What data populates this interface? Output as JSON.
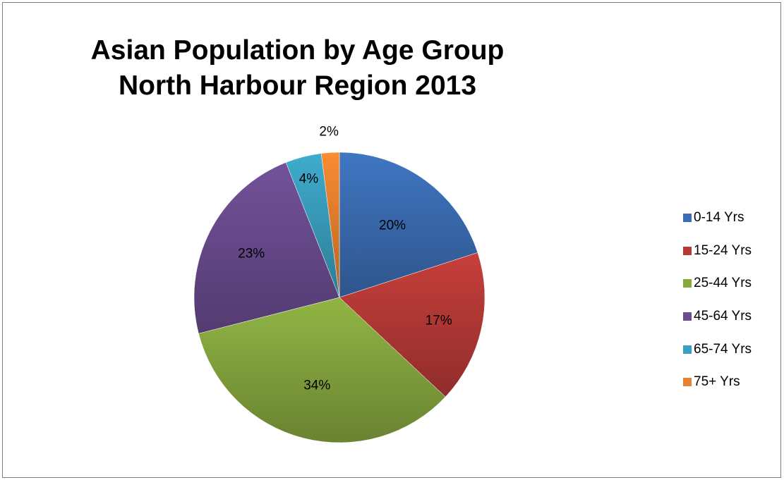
{
  "chart_data": {
    "type": "pie",
    "title": "Asian Population by Age Group",
    "subtitle": "North Harbour Region 2013",
    "categories": [
      "0-14 Yrs",
      "15-24 Yrs",
      "25-44 Yrs",
      "45-64 Yrs",
      "65-74 Yrs",
      "75+ Yrs"
    ],
    "values": [
      20,
      17,
      34,
      23,
      4,
      2
    ],
    "data_labels": [
      "20%",
      "17%",
      "34%",
      "23%",
      "4%",
      "2%"
    ],
    "colors": [
      "#3b6db4",
      "#b83a37",
      "#86a83f",
      "#6a4c8f",
      "#3a9fbf",
      "#e8822e"
    ],
    "legend_position": "right"
  }
}
